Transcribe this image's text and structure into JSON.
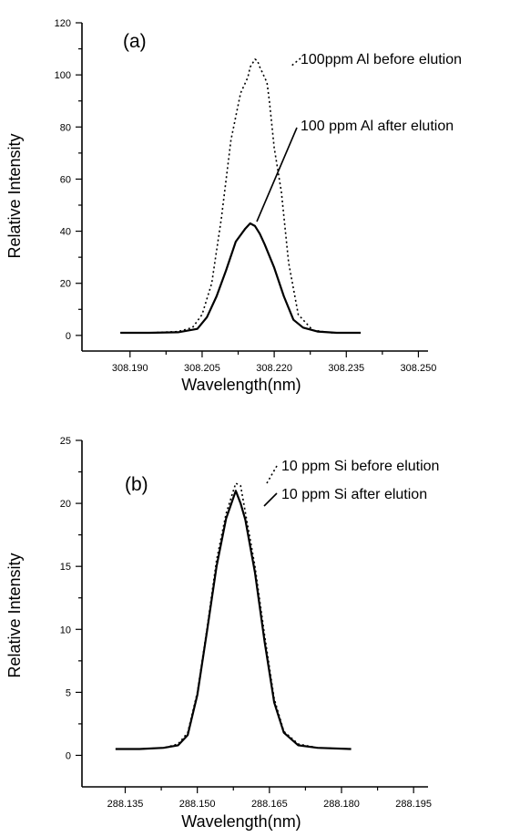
{
  "chart_data": [
    {
      "type": "line",
      "panel_label": "(a)",
      "xlabel": "Wavelength(nm)",
      "ylabel": "Relative Intensity",
      "xlim": [
        308.18,
        308.252
      ],
      "ylim": [
        -6,
        120
      ],
      "xticks": [
        308.19,
        308.205,
        308.22,
        308.235,
        308.25
      ],
      "xtick_labels": [
        "308.190",
        "308.205",
        "308.220",
        "308.235",
        "308.250"
      ],
      "yticks": [
        0,
        20,
        40,
        60,
        80,
        100,
        120
      ],
      "ytick_labels": [
        "0",
        "20",
        "40",
        "60",
        "80",
        "100",
        "120"
      ],
      "series": [
        {
          "name": "100ppm Al before elution",
          "style": "dotted",
          "x": [
            308.188,
            308.194,
            308.2,
            308.203,
            308.205,
            308.207,
            308.209,
            308.211,
            308.213,
            308.2145,
            308.215,
            308.216,
            308.2165,
            308.217,
            308.218,
            308.2185,
            308.219,
            308.22,
            308.2215,
            308.223,
            308.225,
            308.228,
            308.232,
            308.238
          ],
          "y": [
            1,
            1,
            1.5,
            3,
            8,
            20,
            45,
            75,
            93,
            99,
            103,
            106,
            105.5,
            103,
            99,
            97,
            90,
            72,
            55,
            28,
            8,
            2,
            1,
            1
          ]
        },
        {
          "name": "100 ppm Al after elution",
          "style": "solid",
          "x": [
            308.188,
            308.194,
            308.2,
            308.204,
            308.206,
            308.208,
            308.21,
            308.212,
            308.214,
            308.215,
            308.216,
            308.217,
            308.218,
            308.22,
            308.222,
            308.224,
            308.226,
            308.229,
            308.233,
            308.238
          ],
          "y": [
            1,
            1,
            1.2,
            2.5,
            7,
            15,
            25,
            36,
            41,
            43,
            42,
            39,
            35,
            26,
            15,
            6,
            3,
            1.5,
            1,
            1
          ]
        }
      ],
      "annotations": [
        {
          "text": "100ppm Al before elution",
          "series": 0
        },
        {
          "text": "100 ppm Al after elution",
          "series": 1
        }
      ]
    },
    {
      "type": "line",
      "panel_label": "(b)",
      "xlabel": "Wavelength(nm)",
      "ylabel": "Relative Intensity",
      "xlim": [
        288.126,
        288.198
      ],
      "ylim": [
        -2.5,
        25
      ],
      "xticks": [
        288.135,
        288.15,
        288.165,
        288.18,
        288.195
      ],
      "xtick_labels": [
        "288.135",
        "288.150",
        "288.165",
        "288.180",
        "288.195"
      ],
      "yticks": [
        0,
        5,
        10,
        15,
        20,
        25
      ],
      "ytick_labels": [
        "0",
        "5",
        "10",
        "15",
        "20",
        "25"
      ],
      "series": [
        {
          "name": "10 ppm Si before elution",
          "style": "dotted",
          "x": [
            288.133,
            288.138,
            288.143,
            288.146,
            288.148,
            288.15,
            288.152,
            288.154,
            288.156,
            288.158,
            288.159,
            288.16,
            288.162,
            288.164,
            288.166,
            288.168,
            288.171,
            288.175,
            288.182
          ],
          "y": [
            0.5,
            0.5,
            0.6,
            0.9,
            1.8,
            5,
            10,
            15.5,
            19.2,
            21.6,
            21.4,
            19.3,
            15,
            9.5,
            4.5,
            1.9,
            0.9,
            0.6,
            0.5
          ]
        },
        {
          "name": "10 ppm Si after elution",
          "style": "solid",
          "x": [
            288.133,
            288.138,
            288.143,
            288.146,
            288.148,
            288.15,
            288.152,
            288.154,
            288.156,
            288.158,
            288.159,
            288.16,
            288.162,
            288.164,
            288.166,
            288.168,
            288.171,
            288.175,
            288.182
          ],
          "y": [
            0.5,
            0.5,
            0.6,
            0.8,
            1.6,
            4.8,
            9.8,
            15,
            18.8,
            21,
            20,
            18.7,
            14.5,
            9,
            4.2,
            1.8,
            0.8,
            0.6,
            0.5
          ]
        }
      ],
      "annotations": [
        {
          "text": "10 ppm Si before elution",
          "series": 0
        },
        {
          "text": "10 ppm Si after elution",
          "series": 1
        }
      ]
    }
  ]
}
